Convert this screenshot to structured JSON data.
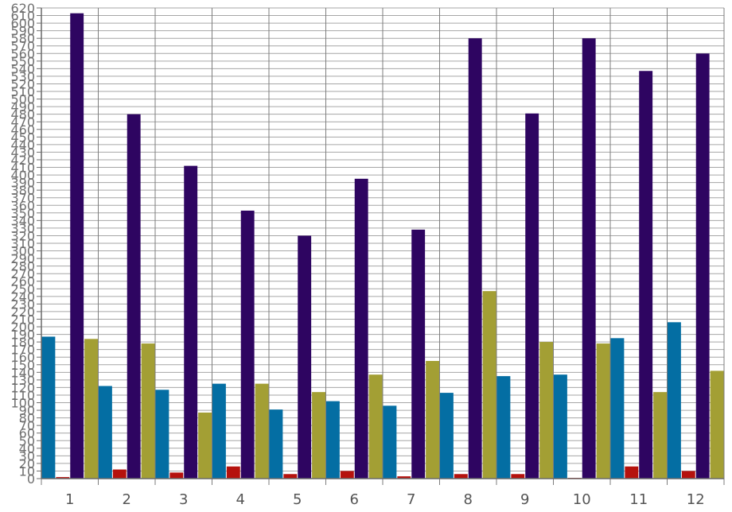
{
  "chart_data": {
    "type": "bar",
    "categories": [
      "1",
      "2",
      "3",
      "4",
      "5",
      "6",
      "7",
      "8",
      "9",
      "10",
      "11",
      "12"
    ],
    "ylim": [
      0,
      620
    ],
    "ytick_step": 10,
    "ytick_labels": [
      "0",
      "10",
      "20",
      "30",
      "40",
      "50",
      "60",
      "70",
      "80",
      "90",
      "100",
      "110",
      "120",
      "130",
      "140",
      "150",
      "160",
      "170",
      "180",
      "190",
      "200",
      "210",
      "220",
      "230",
      "240",
      "250",
      "260",
      "270",
      "280",
      "290",
      "300",
      "310",
      "320",
      "330",
      "340",
      "350",
      "360",
      "370",
      "380",
      "390",
      "400",
      "410",
      "420",
      "430",
      "440",
      "450",
      "460",
      "470",
      "480",
      "490",
      "500",
      "510",
      "520",
      "530",
      "540",
      "550",
      "560",
      "570",
      "580",
      "590",
      "600",
      "610",
      "620"
    ],
    "grid": true,
    "series": [
      {
        "color": "#046ea3",
        "values": [
          187,
          122,
          117,
          125,
          91,
          102,
          96,
          113,
          135,
          137,
          185,
          206
        ]
      },
      {
        "color": "#b5120d",
        "values": [
          2,
          12,
          8,
          16,
          6,
          10,
          3,
          6,
          6,
          1,
          16,
          10
        ]
      },
      {
        "color": "#2e0561",
        "values": [
          613,
          480,
          412,
          353,
          320,
          395,
          328,
          580,
          481,
          580,
          537,
          560
        ]
      },
      {
        "color": "#a39f34",
        "values": [
          184,
          178,
          87,
          125,
          114,
          137,
          155,
          247,
          180,
          178,
          114,
          142
        ]
      }
    ]
  }
}
